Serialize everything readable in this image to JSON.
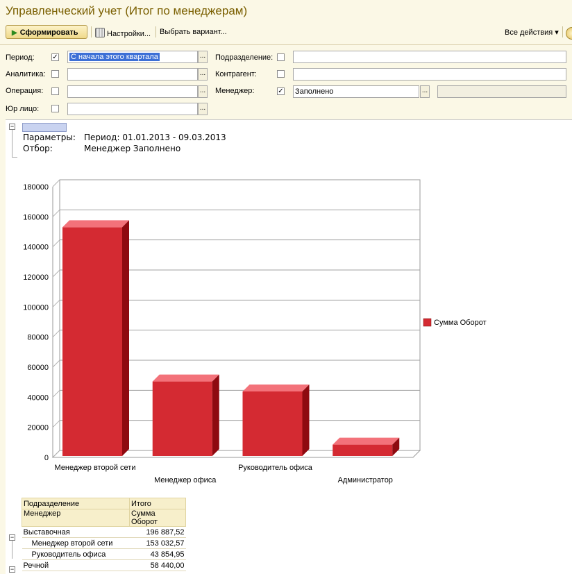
{
  "window": {
    "title": "Управленческий учет (Итог по менеджерам)"
  },
  "toolbar": {
    "generate": "Сформировать",
    "settings": "Настройки...",
    "choose_variant": "Выбрать вариант...",
    "all_actions": "Все действия",
    "all_actions_arrow": "▾"
  },
  "filters": {
    "period": {
      "label": "Период:",
      "checked": true,
      "value": "С начала этого квартала"
    },
    "analytics": {
      "label": "Аналитика:",
      "checked": false,
      "value": ""
    },
    "operation": {
      "label": "Операция:",
      "checked": false,
      "value": ""
    },
    "legal": {
      "label": "Юр лицо:",
      "checked": false,
      "value": ""
    },
    "division": {
      "label": "Подразделение:",
      "checked": false,
      "value": ""
    },
    "counterparty": {
      "label": "Контрагент:",
      "checked": false,
      "value": ""
    },
    "manager": {
      "label": "Менеджер:",
      "checked": true,
      "value": "Заполнено",
      "extra": ""
    },
    "dots": "..."
  },
  "report": {
    "params_label": "Параметры:",
    "params_value": "Период: 01.01.2013 - 09.03.2013",
    "filter_label": "Отбор:",
    "filter_value": "Менеджер Заполнено"
  },
  "chart_data": {
    "type": "bar",
    "categories": [
      "Менеджер второй сети",
      "Менеджер офиса",
      "Руководитель офиса",
      "Администратор"
    ],
    "series": [
      {
        "name": "Сумма Оборот",
        "values": [
          153032.57,
          50500,
          43854.95,
          8500
        ]
      }
    ],
    "ylim": [
      0,
      180000
    ],
    "yticks": [
      "180000",
      "160000",
      "140000",
      "120000",
      "100000",
      "80000",
      "60000",
      "40000",
      "20000",
      "0"
    ],
    "grid": true,
    "legend": "right",
    "colors": {
      "front": "#d42a32",
      "top": "#f3727a",
      "side": "#8e0a10"
    }
  },
  "table": {
    "header": {
      "col1_row1": "Подразделение",
      "col2_row1": "Итого",
      "col1_row2": "Менеджер",
      "col2_row2a": "Сумма",
      "col2_row2b": "Оборот"
    },
    "rows": [
      {
        "name": "Выставочная",
        "value": "196 887,52",
        "level": 0
      },
      {
        "name": "Менеджер второй сети",
        "value": "153 032,57",
        "level": 1
      },
      {
        "name": "Руководитель офиса",
        "value": "43 854,95",
        "level": 1
      },
      {
        "name": "Речной",
        "value": "58 440,00",
        "level": 0
      }
    ]
  }
}
